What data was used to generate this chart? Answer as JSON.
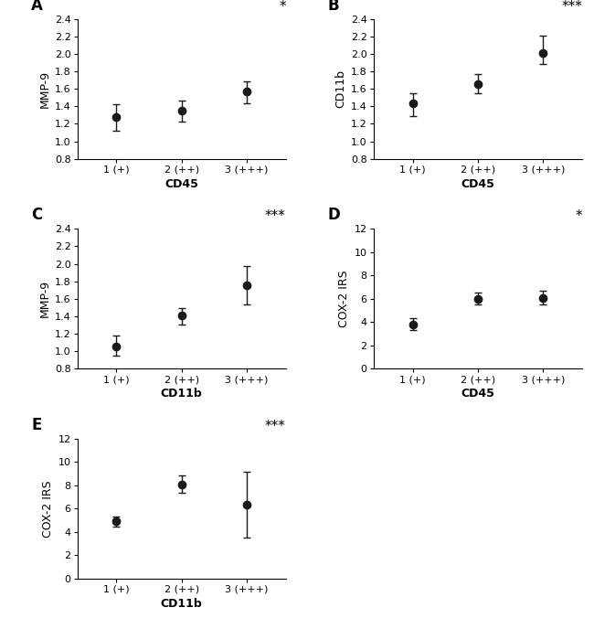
{
  "subplots": [
    {
      "label": "A",
      "xlabel": "CD45",
      "ylabel": "MMP-9",
      "significance": "*",
      "ylim": [
        0.8,
        2.4
      ],
      "yticks": [
        0.8,
        1.0,
        1.2,
        1.4,
        1.6,
        1.8,
        2.0,
        2.2,
        2.4
      ],
      "ytick_labels": [
        "0.8",
        "1.0",
        "1.2",
        "1.4",
        "1.6",
        "1.8",
        "2.0",
        "2.2",
        "2.4"
      ],
      "xtick_labels": [
        "1 (+)",
        "2 (++)",
        "3 (+++)"
      ],
      "x": [
        1,
        2,
        3
      ],
      "y": [
        1.28,
        1.35,
        1.57
      ],
      "yerr_lo": [
        0.16,
        0.12,
        0.14
      ],
      "yerr_hi": [
        0.14,
        0.12,
        0.12
      ]
    },
    {
      "label": "B",
      "xlabel": "CD45",
      "ylabel": "CD11b",
      "significance": "***",
      "ylim": [
        0.8,
        2.4
      ],
      "yticks": [
        0.8,
        1.0,
        1.2,
        1.4,
        1.6,
        1.8,
        2.0,
        2.2,
        2.4
      ],
      "ytick_labels": [
        "0.8",
        "1.0",
        "1.2",
        "1.4",
        "1.6",
        "1.8",
        "2.0",
        "2.2",
        "2.4"
      ],
      "xtick_labels": [
        "1 (+)",
        "2 (++)",
        "3 (+++)"
      ],
      "x": [
        1,
        2,
        3
      ],
      "y": [
        1.43,
        1.65,
        2.01
      ],
      "yerr_lo": [
        0.14,
        0.1,
        0.13
      ],
      "yerr_hi": [
        0.12,
        0.12,
        0.2
      ]
    },
    {
      "label": "C",
      "xlabel": "CD11b",
      "ylabel": "MMP-9",
      "significance": "***",
      "ylim": [
        0.8,
        2.4
      ],
      "yticks": [
        0.8,
        1.0,
        1.2,
        1.4,
        1.6,
        1.8,
        2.0,
        2.2,
        2.4
      ],
      "ytick_labels": [
        "0.8",
        "1.0",
        "1.2",
        "1.4",
        "1.6",
        "1.8",
        "2.0",
        "2.2",
        "2.4"
      ],
      "xtick_labels": [
        "1 (+)",
        "2 (++)",
        "3 (+++)"
      ],
      "x": [
        1,
        2,
        3
      ],
      "y": [
        1.05,
        1.41,
        1.75
      ],
      "yerr_lo": [
        0.1,
        0.1,
        0.22
      ],
      "yerr_hi": [
        0.13,
        0.08,
        0.22
      ]
    },
    {
      "label": "D",
      "xlabel": "CD45",
      "ylabel": "COX-2 IRS",
      "significance": "*",
      "ylim": [
        0,
        12
      ],
      "yticks": [
        0,
        2,
        4,
        6,
        8,
        10,
        12
      ],
      "ytick_labels": [
        "0",
        "2",
        "4",
        "6",
        "8",
        "10",
        "12"
      ],
      "xtick_labels": [
        "1 (+)",
        "2 (++)",
        "3 (+++)"
      ],
      "x": [
        1,
        2,
        3
      ],
      "y": [
        3.8,
        6.0,
        6.1
      ],
      "yerr_lo": [
        0.5,
        0.5,
        0.6
      ],
      "yerr_hi": [
        0.5,
        0.5,
        0.6
      ]
    },
    {
      "label": "E",
      "xlabel": "CD11b",
      "ylabel": "COX-2 IRS",
      "significance": "***",
      "ylim": [
        0,
        12
      ],
      "yticks": [
        0,
        2,
        4,
        6,
        8,
        10,
        12
      ],
      "ytick_labels": [
        "0",
        "2",
        "4",
        "6",
        "8",
        "10",
        "12"
      ],
      "xtick_labels": [
        "1 (+)",
        "2 (++)",
        "3 (+++)"
      ],
      "x": [
        1,
        2,
        3
      ],
      "y": [
        4.9,
        8.1,
        6.35
      ],
      "yerr_lo": [
        0.45,
        0.75,
        2.85
      ],
      "yerr_hi": [
        0.45,
        0.75,
        2.85
      ]
    }
  ],
  "marker": "o",
  "markersize": 6,
  "markercolor": "#1a1a1a",
  "capsize": 3,
  "elinewidth": 1.0,
  "font_label": 9,
  "font_ylabel": 9,
  "font_tick": 8,
  "font_sig": 11,
  "font_panel_label": 12
}
